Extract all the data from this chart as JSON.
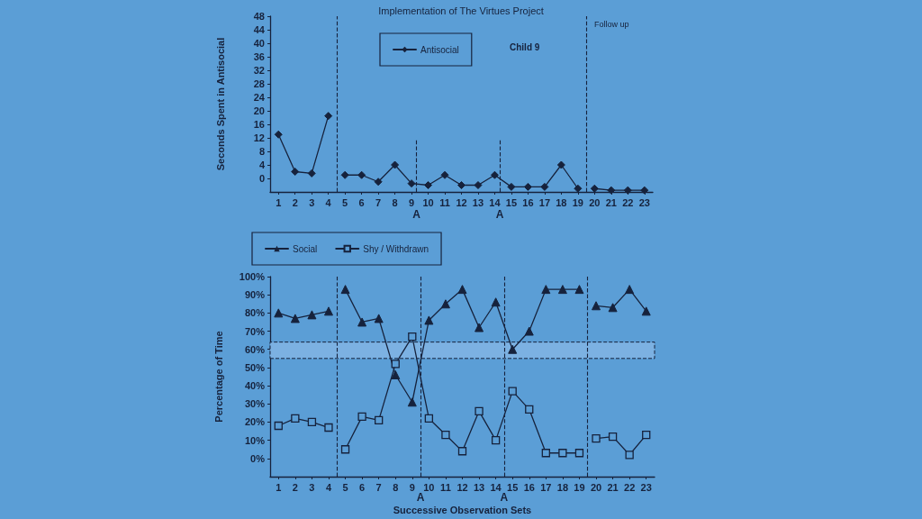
{
  "chart_data": [
    {
      "type": "line",
      "title": "Implementation of The Virtues Project",
      "ylabel": "Seconds Spent in Antisocial",
      "annotations": [
        "Child 9",
        "Follow up"
      ],
      "x": [
        1,
        2,
        3,
        4,
        4.5,
        5,
        6,
        7,
        8,
        9,
        10,
        11,
        12,
        13,
        14,
        15,
        16,
        17,
        18,
        19,
        19.5,
        20,
        21,
        22,
        23
      ],
      "series": [
        {
          "name": "Antisocial",
          "color": "#16223c",
          "marker": "diamond",
          "values": [
            13,
            2,
            1.5,
            18.5,
            null,
            1,
            1,
            -1,
            4,
            -1.5,
            -2,
            1,
            -2,
            -2,
            1,
            -2.5,
            -2.5,
            -2.5,
            4,
            -3,
            null,
            -3,
            -3.5,
            -3.5,
            -3.5
          ]
        }
      ],
      "xlim": [
        0.5,
        23.5
      ],
      "xticks": [
        1,
        2,
        3,
        4,
        5,
        6,
        7,
        8,
        9,
        10,
        11,
        12,
        13,
        14,
        15,
        16,
        17,
        18,
        19,
        20,
        21,
        22,
        23
      ],
      "ylim": [
        -4,
        48
      ],
      "yticks": [
        0,
        4,
        8,
        12,
        16,
        20,
        24,
        28,
        32,
        36,
        40,
        44,
        48
      ],
      "ref_lines": [
        {
          "axis": "x",
          "value": 4.5,
          "line_style": "dashed"
        },
        {
          "axis": "x",
          "value": 9.3,
          "label": "A",
          "line_style": "dashed"
        },
        {
          "axis": "x",
          "value": 14.3,
          "label": "A",
          "line_style": "dashed"
        },
        {
          "axis": "x",
          "value": 19.5,
          "line_style": "dashed"
        }
      ],
      "grid": false,
      "legend": "top"
    },
    {
      "type": "line",
      "xlabel": "Successive Observation Sets",
      "ylabel": "Percentage of Time",
      "x": [
        1,
        2,
        3,
        4,
        4.5,
        5,
        6,
        7,
        8,
        9,
        10,
        11,
        12,
        13,
        14,
        15,
        16,
        17,
        18,
        19,
        19.5,
        20,
        21,
        22,
        23
      ],
      "series": [
        {
          "name": "Social",
          "color": "#16223c",
          "marker": "triangle",
          "values": [
            80,
            77,
            79,
            81,
            null,
            93,
            75,
            77,
            46,
            31,
            76,
            85,
            93,
            72,
            86,
            60,
            70,
            93,
            93,
            93,
            null,
            84,
            83,
            93,
            81
          ]
        },
        {
          "name": "Shy / Withdrawn",
          "color": "#16223c",
          "marker": "square",
          "values": [
            18,
            22,
            20,
            17,
            null,
            5,
            23,
            21,
            52,
            67,
            22,
            13,
            4,
            26,
            10,
            37,
            27,
            3,
            3,
            3,
            null,
            11,
            12,
            2,
            13
          ]
        }
      ],
      "xlim": [
        0.5,
        23.5
      ],
      "xticks": [
        1,
        2,
        3,
        4,
        5,
        6,
        7,
        8,
        9,
        10,
        11,
        12,
        13,
        14,
        15,
        16,
        17,
        18,
        19,
        20,
        21,
        22,
        23
      ],
      "ylim": [
        -10,
        100
      ],
      "yticks": [
        {
          "value": 0,
          "label": "0%"
        },
        {
          "value": 10,
          "label": "10%"
        },
        {
          "value": 20,
          "label": "20%"
        },
        {
          "value": 30,
          "label": "30%"
        },
        {
          "value": 40,
          "label": "40%"
        },
        {
          "value": 50,
          "label": "50%"
        },
        {
          "value": 60,
          "label": "60%"
        },
        {
          "value": 70,
          "label": "70%"
        },
        {
          "value": 80,
          "label": "80%"
        },
        {
          "value": 90,
          "label": "90%"
        },
        {
          "value": 100,
          "label": "100%"
        }
      ],
      "ref_lines": [
        {
          "axis": "x",
          "value": 4.5,
          "line_style": "dashed"
        },
        {
          "axis": "x",
          "value": 9.5,
          "label": "A",
          "line_style": "dashed"
        },
        {
          "axis": "x",
          "value": 14.5,
          "label": "A",
          "line_style": "dashed"
        },
        {
          "axis": "x",
          "value": 19.5,
          "line_style": "dashed"
        }
      ],
      "bands": [
        {
          "axis": "y",
          "from": 55,
          "to": 64,
          "color": "#7cb1e2"
        }
      ],
      "grid": false,
      "legend": "top left"
    }
  ]
}
